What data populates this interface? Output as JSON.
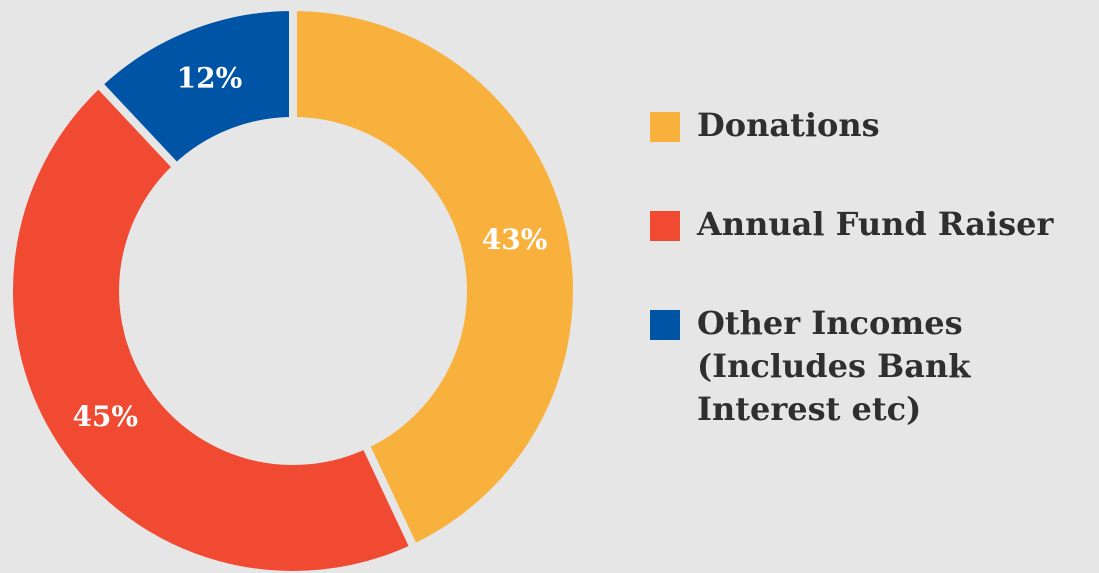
{
  "chart_data": {
    "type": "donut",
    "categories": [
      "Donations",
      "Annual Fund Raiser",
      "Other Incomes (Includes Bank Interest etc)"
    ],
    "values": [
      43,
      45,
      12
    ],
    "value_labels": [
      "43%",
      "45%",
      "12%"
    ],
    "colors": [
      "#f9b13e",
      "#f04a32",
      "#0054a6"
    ],
    "legend": "right"
  }
}
